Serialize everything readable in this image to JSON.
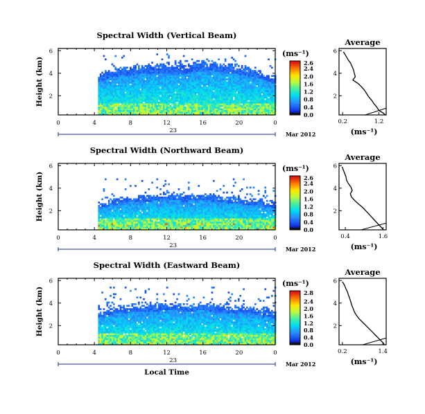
{
  "chart_data": [
    {
      "type": "heatmap",
      "title": "Spectral Width (Vertical Beam)",
      "ylabel": "Height (km)",
      "xlabel": "",
      "x_ticks": [
        "0",
        "4",
        "8",
        "12",
        "16",
        "20",
        "0"
      ],
      "y_ticks": [
        "6",
        "4",
        "2"
      ],
      "day_label": "23",
      "date_label": "Mar 2012",
      "colorbar_unit": "(ms⁻¹)",
      "colorbar_ticks": [
        "2.6",
        "2.4",
        "2.0",
        "1.6",
        "1.2",
        "0.8",
        "0.4",
        "0.0"
      ],
      "colorbar_range": [
        0,
        2.8
      ],
      "xlim": [
        0,
        24
      ],
      "ylim": [
        0.3,
        6.2
      ],
      "data_start_hour": 4.4,
      "top_envelope_km": [
        [
          4.4,
          3.9
        ],
        [
          6,
          4.4
        ],
        [
          8,
          4.6
        ],
        [
          10,
          4.8
        ],
        [
          12,
          4.8
        ],
        [
          14,
          4.7
        ],
        [
          16,
          5.1
        ],
        [
          18,
          4.9
        ],
        [
          20,
          4.6
        ],
        [
          22,
          4.3
        ],
        [
          23.8,
          3.6
        ]
      ],
      "sparse_upper_km": 5.9,
      "peak_width_ms": 2.0,
      "avg_profile": {
        "title": "Average",
        "xlabel": "(ms⁻¹)",
        "x_ticks": [
          "0.2",
          "1.2"
        ],
        "xlim": [
          0.1,
          1.4
        ],
        "y_ticks": [
          "6",
          "4",
          "2"
        ],
        "ylim": [
          0.3,
          6.2
        ],
        "heights": [
          5.9,
          5.6,
          5.2,
          4.9,
          4.6,
          4.3,
          4.0,
          3.7,
          3.4,
          3.1,
          2.8,
          2.5,
          2.2,
          1.9,
          1.6,
          1.3,
          1.0,
          0.7,
          0.5,
          0.3
        ],
        "values": [
          0.22,
          0.28,
          0.35,
          0.42,
          0.46,
          0.5,
          0.52,
          0.55,
          0.48,
          0.62,
          0.72,
          0.8,
          0.86,
          0.92,
          1.0,
          1.06,
          1.14,
          1.2,
          1.3,
          1.38
        ]
      }
    },
    {
      "type": "heatmap",
      "title": "Spectral Width (Northward Beam)",
      "ylabel": "Height (km)",
      "xlabel": "",
      "x_ticks": [
        "0",
        "4",
        "8",
        "12",
        "16",
        "20",
        "0"
      ],
      "y_ticks": [
        "6",
        "4",
        "2"
      ],
      "day_label": "23",
      "date_label": "Mar 2012",
      "colorbar_unit": "(ms⁻¹)",
      "colorbar_ticks": [
        "2.6",
        "2.4",
        "2.0",
        "1.6",
        "1.2",
        "0.8",
        "0.4",
        "0.0"
      ],
      "colorbar_range": [
        0,
        2.8
      ],
      "xlim": [
        0,
        24
      ],
      "ylim": [
        0.3,
        6.2
      ],
      "data_start_hour": 4.4,
      "top_envelope_km": [
        [
          4.4,
          2.6
        ],
        [
          6,
          3.0
        ],
        [
          8,
          3.3
        ],
        [
          10,
          3.4
        ],
        [
          12,
          3.5
        ],
        [
          14,
          3.4
        ],
        [
          16,
          3.5
        ],
        [
          18,
          3.3
        ],
        [
          20,
          3.1
        ],
        [
          22,
          2.9
        ],
        [
          23.8,
          2.7
        ]
      ],
      "sparse_upper_km": 5.0,
      "peak_width_ms": 2.6,
      "avg_profile": {
        "title": "Average",
        "xlabel": "(ms⁻¹)",
        "x_ticks": [
          "0.4",
          "1.6"
        ],
        "xlim": [
          0.2,
          1.7
        ],
        "y_ticks": [
          "6",
          "4",
          "2"
        ],
        "ylim": [
          0.3,
          6.2
        ],
        "heights": [
          5.9,
          5.6,
          5.3,
          5.0,
          4.7,
          4.4,
          4.1,
          3.8,
          3.5,
          3.2,
          2.9,
          2.6,
          2.3,
          2.0,
          1.7,
          1.4,
          1.1,
          0.8,
          0.5,
          0.3
        ],
        "values": [
          0.3,
          0.34,
          0.38,
          0.42,
          0.44,
          0.5,
          0.58,
          0.62,
          0.56,
          0.6,
          0.7,
          0.82,
          0.95,
          1.05,
          1.15,
          1.25,
          1.35,
          1.45,
          1.55,
          1.62
        ]
      }
    },
    {
      "type": "heatmap",
      "title": "Spectral Width (Eastward Beam)",
      "ylabel": "Height (km)",
      "xlabel": "Local Time",
      "x_ticks": [
        "0",
        "4",
        "8",
        "12",
        "16",
        "20",
        "0"
      ],
      "y_ticks": [
        "6",
        "4",
        "2"
      ],
      "day_label": "23",
      "date_label": "Mar 2012",
      "colorbar_unit": "(ms⁻¹)",
      "colorbar_ticks": [
        "2.8",
        "2.4",
        "2.0",
        "1.6",
        "1.2",
        "0.8",
        "0.4",
        "0.0"
      ],
      "colorbar_range": [
        0,
        3.0
      ],
      "xlim": [
        0,
        24
      ],
      "ylim": [
        0.3,
        6.2
      ],
      "data_start_hour": 4.4,
      "top_envelope_km": [
        [
          4.4,
          3.3
        ],
        [
          6,
          3.6
        ],
        [
          8,
          3.8
        ],
        [
          10,
          3.9
        ],
        [
          12,
          4.0
        ],
        [
          14,
          3.9
        ],
        [
          16,
          4.0
        ],
        [
          18,
          3.8
        ],
        [
          20,
          3.7
        ],
        [
          22,
          3.5
        ],
        [
          23.8,
          3.2
        ]
      ],
      "sparse_upper_km": 5.6,
      "peak_width_ms": 2.4,
      "avg_profile": {
        "title": "Average",
        "xlabel": "(ms⁻¹)",
        "x_ticks": [
          "0.2",
          "1.4"
        ],
        "xlim": [
          0.1,
          1.5
        ],
        "y_ticks": [
          "6",
          "4",
          "2"
        ],
        "ylim": [
          0.3,
          6.2
        ],
        "heights": [
          5.9,
          5.6,
          5.3,
          5.0,
          4.7,
          4.4,
          4.1,
          3.8,
          3.5,
          3.2,
          2.9,
          2.6,
          2.3,
          2.0,
          1.7,
          1.4,
          1.1,
          0.8,
          0.5,
          0.3
        ],
        "values": [
          0.2,
          0.26,
          0.3,
          0.35,
          0.38,
          0.42,
          0.45,
          0.48,
          0.52,
          0.56,
          0.62,
          0.7,
          0.8,
          0.9,
          1.0,
          1.1,
          1.2,
          1.3,
          1.4,
          1.45
        ]
      }
    }
  ]
}
